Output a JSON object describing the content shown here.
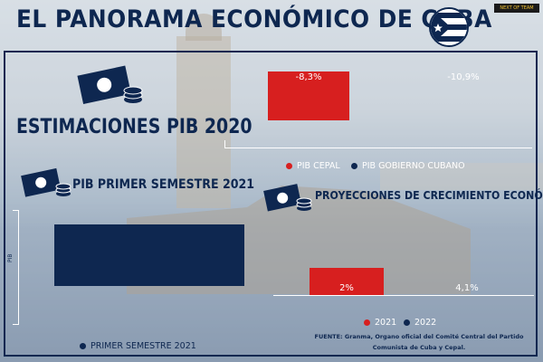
{
  "header": {
    "title": "EL PANORAMA ECONÓMICO DE CUBA",
    "brand": "NEXT OF TEAM"
  },
  "colors": {
    "navy": "#0e2750",
    "red": "#d71f1f",
    "white": "#ffffff"
  },
  "icons": {
    "flag": "cuba-flag-icon",
    "money": "money-coins-icon"
  },
  "section_pib_2020": {
    "heading": "ESTIMACIONES PIB 2020",
    "legend": [
      "PIB CEPAL",
      "PIB GOBIERNO CUBANO"
    ]
  },
  "section_semestre": {
    "heading": "PIB PRIMER SEMESTRE 2021",
    "ylabel": "PIB",
    "legend": "PRIMER SEMESTRE 2021"
  },
  "section_proyecciones": {
    "heading": "PROYECCIONES DE CRECIMIENTO ECONÓMICO",
    "legend": [
      "2021",
      "2022"
    ]
  },
  "source": {
    "line1": "FUENTE: Granma, Organo oficial del Comité Central del Partido",
    "line2": "Comunista de Cuba y Cepal."
  },
  "chart_data": [
    {
      "type": "bar",
      "title": "ESTIMACIONES PIB 2020",
      "categories": [
        "PIB CEPAL",
        "PIB GOBIERNO CUBANO"
      ],
      "values": [
        -8.3,
        -10.9
      ],
      "data_labels": [
        "-8,3%",
        "-10,9%"
      ],
      "colors": [
        "#d71f1f",
        "#0e2750"
      ],
      "legend_position": "bottom"
    },
    {
      "type": "bar",
      "title": "PIB PRIMER SEMESTRE 2021",
      "ylabel": "PIB",
      "series": [
        {
          "name": "PRIMER SEMESTRE 2021",
          "values": [
            -2
          ]
        }
      ],
      "colors": [
        "#0e2750"
      ],
      "legend_position": "bottom"
    },
    {
      "type": "bar",
      "title": "PROYECCIONES DE CRECIMIENTO ECONÓMICO",
      "categories": [
        "2021",
        "2022"
      ],
      "values": [
        2,
        4.1
      ],
      "data_labels": [
        "2%",
        "4,1%"
      ],
      "colors": [
        "#d71f1f",
        "#0e2750"
      ],
      "legend_position": "bottom"
    }
  ]
}
